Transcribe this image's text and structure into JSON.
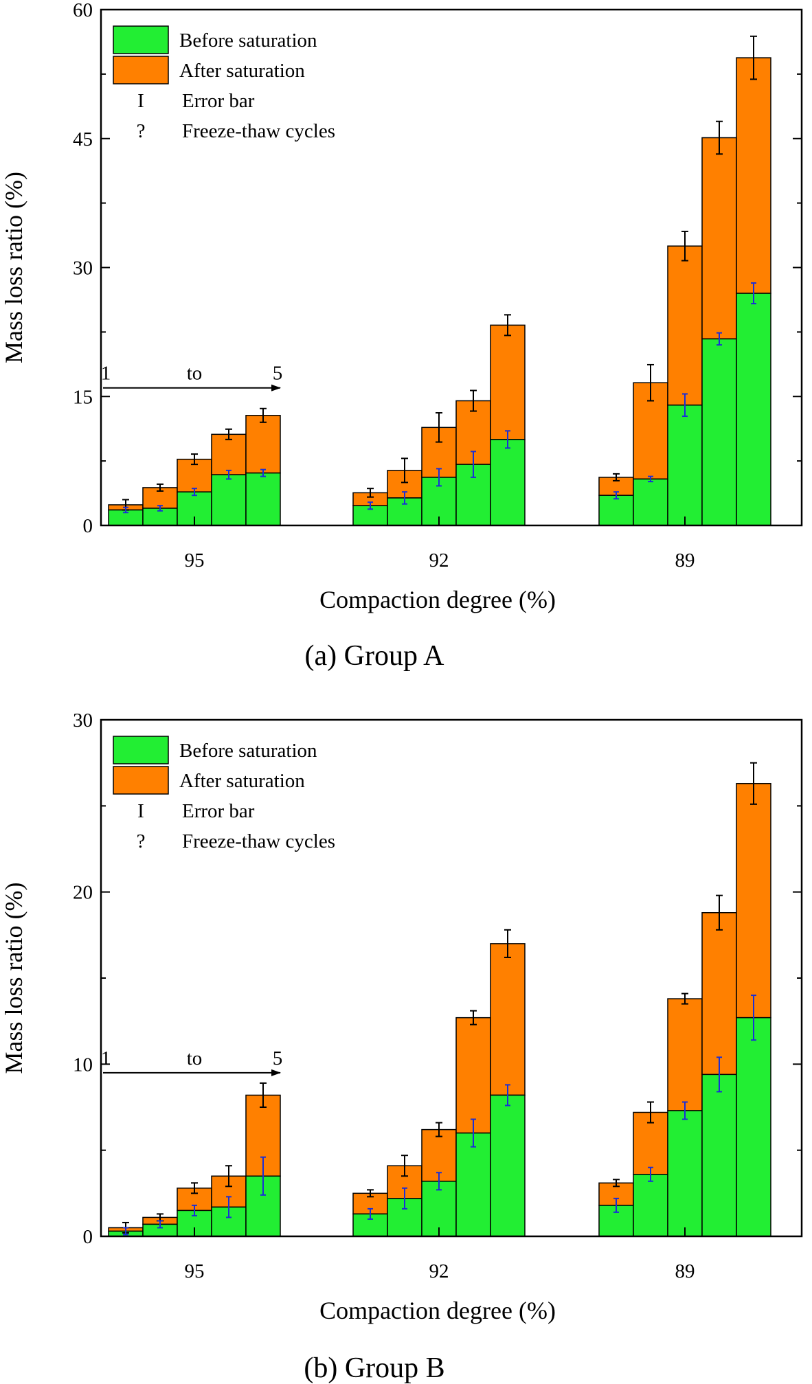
{
  "chart_data": [
    {
      "type": "bar",
      "stacked": true,
      "caption": "(a) Group A",
      "xlabel": "Compaction degree (%)",
      "ylabel": "Mass loss ratio (%)",
      "ylim": [
        0,
        60
      ],
      "yticks": [
        "0",
        "15",
        "30",
        "45",
        "60"
      ],
      "categories": [
        "95",
        "92",
        "89"
      ],
      "legend": {
        "position": "top-left",
        "entries": [
          {
            "name": "Before saturation",
            "symbol": "swatch",
            "color": "#22EE33"
          },
          {
            "name": "After saturation",
            "symbol": "swatch",
            "color": "#FF8000"
          },
          {
            "name": "Error bar",
            "symbol": "I"
          },
          {
            "name": "Freeze-thaw cycles",
            "symbol": "?"
          }
        ]
      },
      "cycles_annotation": {
        "from": "1",
        "to_word": "to",
        "end": "5",
        "y_value": 16
      },
      "series": [
        {
          "name": "Before saturation",
          "color": "#22EE33",
          "values": [
            [
              1.8,
              2.0,
              3.9,
              5.9,
              6.1
            ],
            [
              2.3,
              3.2,
              5.6,
              7.1,
              10.0
            ],
            [
              3.5,
              5.4,
              14.0,
              21.7,
              27.0
            ]
          ],
          "errors": [
            [
              0.3,
              0.3,
              0.4,
              0.5,
              0.4
            ],
            [
              0.4,
              0.7,
              1.0,
              1.5,
              1.0
            ],
            [
              0.4,
              0.3,
              1.3,
              0.7,
              1.2
            ]
          ]
        },
        {
          "name": "After saturation",
          "color": "#FF8000",
          "totals": [
            [
              2.4,
              4.4,
              7.7,
              10.6,
              12.8
            ],
            [
              3.8,
              6.4,
              11.4,
              14.5,
              23.3
            ],
            [
              5.6,
              16.6,
              32.5,
              45.1,
              54.4
            ]
          ],
          "errors": [
            [
              0.6,
              0.4,
              0.6,
              0.6,
              0.8
            ],
            [
              0.5,
              1.4,
              1.7,
              1.2,
              1.2
            ],
            [
              0.4,
              2.1,
              1.7,
              1.9,
              2.5
            ]
          ]
        }
      ]
    },
    {
      "type": "bar",
      "stacked": true,
      "caption": "(b) Group B",
      "xlabel": "Compaction degree (%)",
      "ylabel": "Mass loss ratio (%)",
      "ylim": [
        0,
        30
      ],
      "yticks": [
        "0",
        "10",
        "20",
        "30"
      ],
      "categories": [
        "95",
        "92",
        "89"
      ],
      "legend": {
        "position": "top-left",
        "entries": [
          {
            "name": "Before saturation",
            "symbol": "swatch",
            "color": "#22EE33"
          },
          {
            "name": "After saturation",
            "symbol": "swatch",
            "color": "#FF8000"
          },
          {
            "name": "Error bar",
            "symbol": "I"
          },
          {
            "name": "Freeze-thaw cycles",
            "symbol": "?"
          }
        ]
      },
      "cycles_annotation": {
        "from": "1",
        "to_word": "to",
        "end": "5",
        "y_value": 9.5
      },
      "series": [
        {
          "name": "Before saturation",
          "color": "#22EE33",
          "values": [
            [
              0.3,
              0.7,
              1.5,
              1.7,
              3.5
            ],
            [
              1.3,
              2.2,
              3.2,
              6.0,
              8.2
            ],
            [
              1.8,
              3.6,
              7.3,
              9.4,
              12.7
            ]
          ],
          "errors": [
            [
              0.2,
              0.2,
              0.3,
              0.6,
              1.1
            ],
            [
              0.3,
              0.6,
              0.5,
              0.8,
              0.6
            ],
            [
              0.4,
              0.4,
              0.5,
              1.0,
              1.3
            ]
          ]
        },
        {
          "name": "After saturation",
          "color": "#FF8000",
          "totals": [
            [
              0.5,
              1.1,
              2.8,
              3.5,
              8.2
            ],
            [
              2.5,
              4.1,
              6.2,
              12.7,
              17.0
            ],
            [
              3.1,
              7.2,
              13.8,
              18.8,
              26.3
            ]
          ],
          "errors": [
            [
              0.3,
              0.2,
              0.3,
              0.6,
              0.7
            ],
            [
              0.2,
              0.6,
              0.4,
              0.4,
              0.8
            ],
            [
              0.2,
              0.6,
              0.3,
              1.0,
              1.2
            ]
          ]
        }
      ]
    }
  ]
}
